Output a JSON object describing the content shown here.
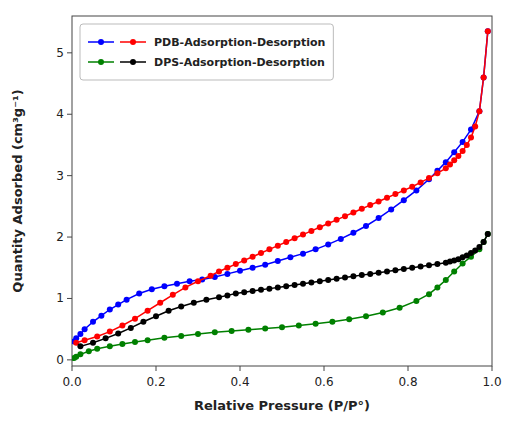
{
  "chart_data": {
    "type": "line",
    "xlabel": "Relative Pressure (P/P°)",
    "ylabel": "Quantity Adsorbed (cm³g⁻¹)",
    "xlim": [
      0.0,
      1.0
    ],
    "ylim": [
      -0.1,
      5.6
    ],
    "xticks": [
      {
        "value": 0.0,
        "label": "0.0"
      },
      0.2,
      0.4,
      0.6,
      0.8,
      {
        "value": 1.0,
        "label": "1.0"
      }
    ],
    "yticks": [
      0,
      1,
      2,
      3,
      4,
      5
    ],
    "grid": false,
    "legend": "upper left",
    "marker": "circle",
    "line_style": "solid",
    "series": [
      {
        "name": "PDB-Adsorption-Desorption",
        "color": "#0000ff",
        "x": [
          0.005,
          0.01,
          0.02,
          0.03,
          0.05,
          0.07,
          0.09,
          0.11,
          0.13,
          0.16,
          0.19,
          0.22,
          0.25,
          0.28,
          0.31,
          0.34,
          0.37,
          0.4,
          0.43,
          0.46,
          0.49,
          0.52,
          0.55,
          0.58,
          0.61,
          0.64,
          0.67,
          0.7,
          0.73,
          0.76,
          0.79,
          0.82,
          0.85,
          0.87,
          0.89,
          0.91,
          0.93,
          0.95,
          0.97,
          0.98,
          0.99
        ],
        "values": [
          0.3,
          0.35,
          0.42,
          0.5,
          0.62,
          0.72,
          0.82,
          0.9,
          0.98,
          1.08,
          1.15,
          1.2,
          1.24,
          1.28,
          1.31,
          1.35,
          1.4,
          1.45,
          1.5,
          1.55,
          1.61,
          1.67,
          1.73,
          1.8,
          1.88,
          1.97,
          2.07,
          2.18,
          2.31,
          2.45,
          2.6,
          2.76,
          2.94,
          3.08,
          3.22,
          3.38,
          3.55,
          3.75,
          4.05,
          4.6,
          5.35
        ]
      },
      {
        "name": "PDB-Adsorption-Desorption",
        "color": "#ff0000",
        "x": [
          0.99,
          0.98,
          0.97,
          0.96,
          0.95,
          0.94,
          0.93,
          0.92,
          0.91,
          0.9,
          0.89,
          0.87,
          0.85,
          0.83,
          0.81,
          0.79,
          0.77,
          0.75,
          0.73,
          0.71,
          0.69,
          0.67,
          0.65,
          0.63,
          0.61,
          0.59,
          0.57,
          0.55,
          0.53,
          0.51,
          0.49,
          0.47,
          0.45,
          0.43,
          0.41,
          0.39,
          0.37,
          0.35,
          0.33,
          0.3,
          0.27,
          0.24,
          0.21,
          0.18,
          0.15,
          0.12,
          0.09,
          0.06,
          0.03,
          0.01
        ],
        "values": [
          5.35,
          4.6,
          4.05,
          3.8,
          3.62,
          3.5,
          3.4,
          3.32,
          3.25,
          3.18,
          3.12,
          3.04,
          2.96,
          2.89,
          2.82,
          2.76,
          2.7,
          2.64,
          2.58,
          2.52,
          2.46,
          2.4,
          2.34,
          2.28,
          2.22,
          2.16,
          2.1,
          2.04,
          1.98,
          1.92,
          1.86,
          1.8,
          1.74,
          1.68,
          1.62,
          1.56,
          1.5,
          1.44,
          1.37,
          1.28,
          1.18,
          1.06,
          0.93,
          0.8,
          0.67,
          0.56,
          0.46,
          0.38,
          0.32,
          0.28
        ]
      },
      {
        "name": "DPS-Adsorption-Desorption",
        "color": "#008000",
        "x": [
          0.005,
          0.01,
          0.02,
          0.04,
          0.06,
          0.09,
          0.12,
          0.15,
          0.18,
          0.22,
          0.26,
          0.3,
          0.34,
          0.38,
          0.42,
          0.46,
          0.5,
          0.54,
          0.58,
          0.62,
          0.66,
          0.7,
          0.74,
          0.78,
          0.82,
          0.85,
          0.87,
          0.89,
          0.91,
          0.93,
          0.95,
          0.97,
          0.98,
          0.99
        ],
        "values": [
          0.03,
          0.05,
          0.09,
          0.14,
          0.18,
          0.22,
          0.26,
          0.29,
          0.32,
          0.36,
          0.39,
          0.42,
          0.45,
          0.47,
          0.49,
          0.51,
          0.53,
          0.56,
          0.59,
          0.62,
          0.66,
          0.71,
          0.77,
          0.85,
          0.96,
          1.07,
          1.18,
          1.3,
          1.44,
          1.57,
          1.68,
          1.8,
          1.92,
          2.05
        ]
      },
      {
        "name": "DPS-Adsorption-Desorption",
        "color": "#000000",
        "x": [
          0.99,
          0.98,
          0.97,
          0.96,
          0.95,
          0.94,
          0.93,
          0.92,
          0.91,
          0.9,
          0.89,
          0.87,
          0.85,
          0.83,
          0.81,
          0.79,
          0.77,
          0.75,
          0.73,
          0.71,
          0.69,
          0.67,
          0.65,
          0.63,
          0.61,
          0.59,
          0.57,
          0.55,
          0.53,
          0.51,
          0.49,
          0.47,
          0.45,
          0.43,
          0.41,
          0.39,
          0.37,
          0.35,
          0.32,
          0.29,
          0.26,
          0.23,
          0.2,
          0.17,
          0.14,
          0.11,
          0.08,
          0.05,
          0.02
        ],
        "values": [
          2.05,
          1.92,
          1.84,
          1.78,
          1.74,
          1.7,
          1.67,
          1.64,
          1.62,
          1.6,
          1.58,
          1.56,
          1.54,
          1.52,
          1.5,
          1.48,
          1.46,
          1.44,
          1.42,
          1.4,
          1.38,
          1.36,
          1.34,
          1.32,
          1.3,
          1.28,
          1.26,
          1.24,
          1.22,
          1.2,
          1.18,
          1.16,
          1.14,
          1.12,
          1.1,
          1.08,
          1.05,
          1.02,
          0.98,
          0.93,
          0.87,
          0.8,
          0.71,
          0.62,
          0.52,
          0.43,
          0.35,
          0.28,
          0.22
        ]
      }
    ]
  }
}
